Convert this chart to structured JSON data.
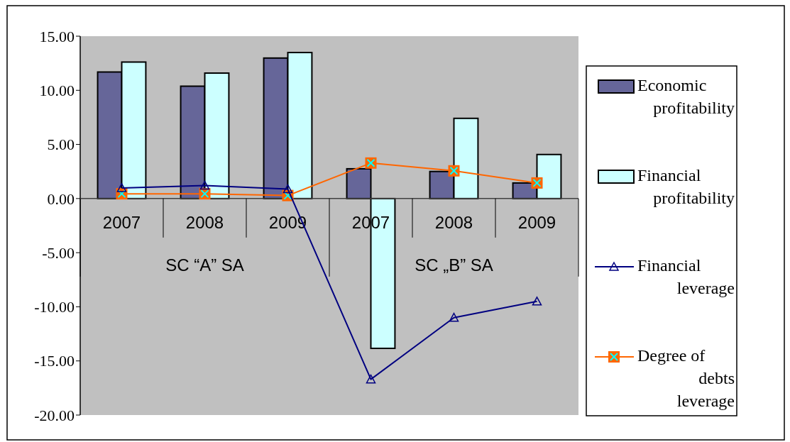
{
  "chart_data": {
    "type": "bar",
    "categories": [
      "2007",
      "2008",
      "2009",
      "2007",
      "2008",
      "2009"
    ],
    "annotations": [
      "SC “A” SA",
      "SC „B” SA"
    ],
    "series": [
      {
        "name": "Economic profitability",
        "color": "#666699",
        "values": [
          11.69,
          10.38,
          12.98,
          2.75,
          2.5,
          1.44
        ]
      },
      {
        "name": "Financial profitability",
        "color": "#ccffff",
        "values": [
          12.61,
          11.59,
          13.49,
          -13.84,
          7.41,
          4.07
        ]
      },
      {
        "name": "Financial leverage",
        "type": "line",
        "color": "#000080",
        "marker": "triangle",
        "values": [
          0.98,
          1.2,
          0.87,
          -16.7,
          -11.0,
          -9.5
        ]
      },
      {
        "name": "Degree of debts leverage",
        "type": "line",
        "color": "#ff6600",
        "marker": "square",
        "values": [
          0.44,
          0.44,
          0.28,
          3.28,
          2.56,
          1.44
        ]
      }
    ],
    "ylim": [
      -20,
      15
    ],
    "yticks": [
      {
        "value": -20,
        "label": "-20.00"
      },
      {
        "value": -15,
        "label": "-15.00"
      },
      {
        "value": -10,
        "label": "-10.00"
      },
      {
        "value": -5,
        "label": "-5.00"
      },
      {
        "value": 0,
        "label": "0.00"
      },
      {
        "value": 5,
        "label": "5.00"
      },
      {
        "value": 10,
        "label": "10.00"
      },
      {
        "value": 15,
        "label": "15.00"
      }
    ],
    "grid": false,
    "legend": "right"
  }
}
